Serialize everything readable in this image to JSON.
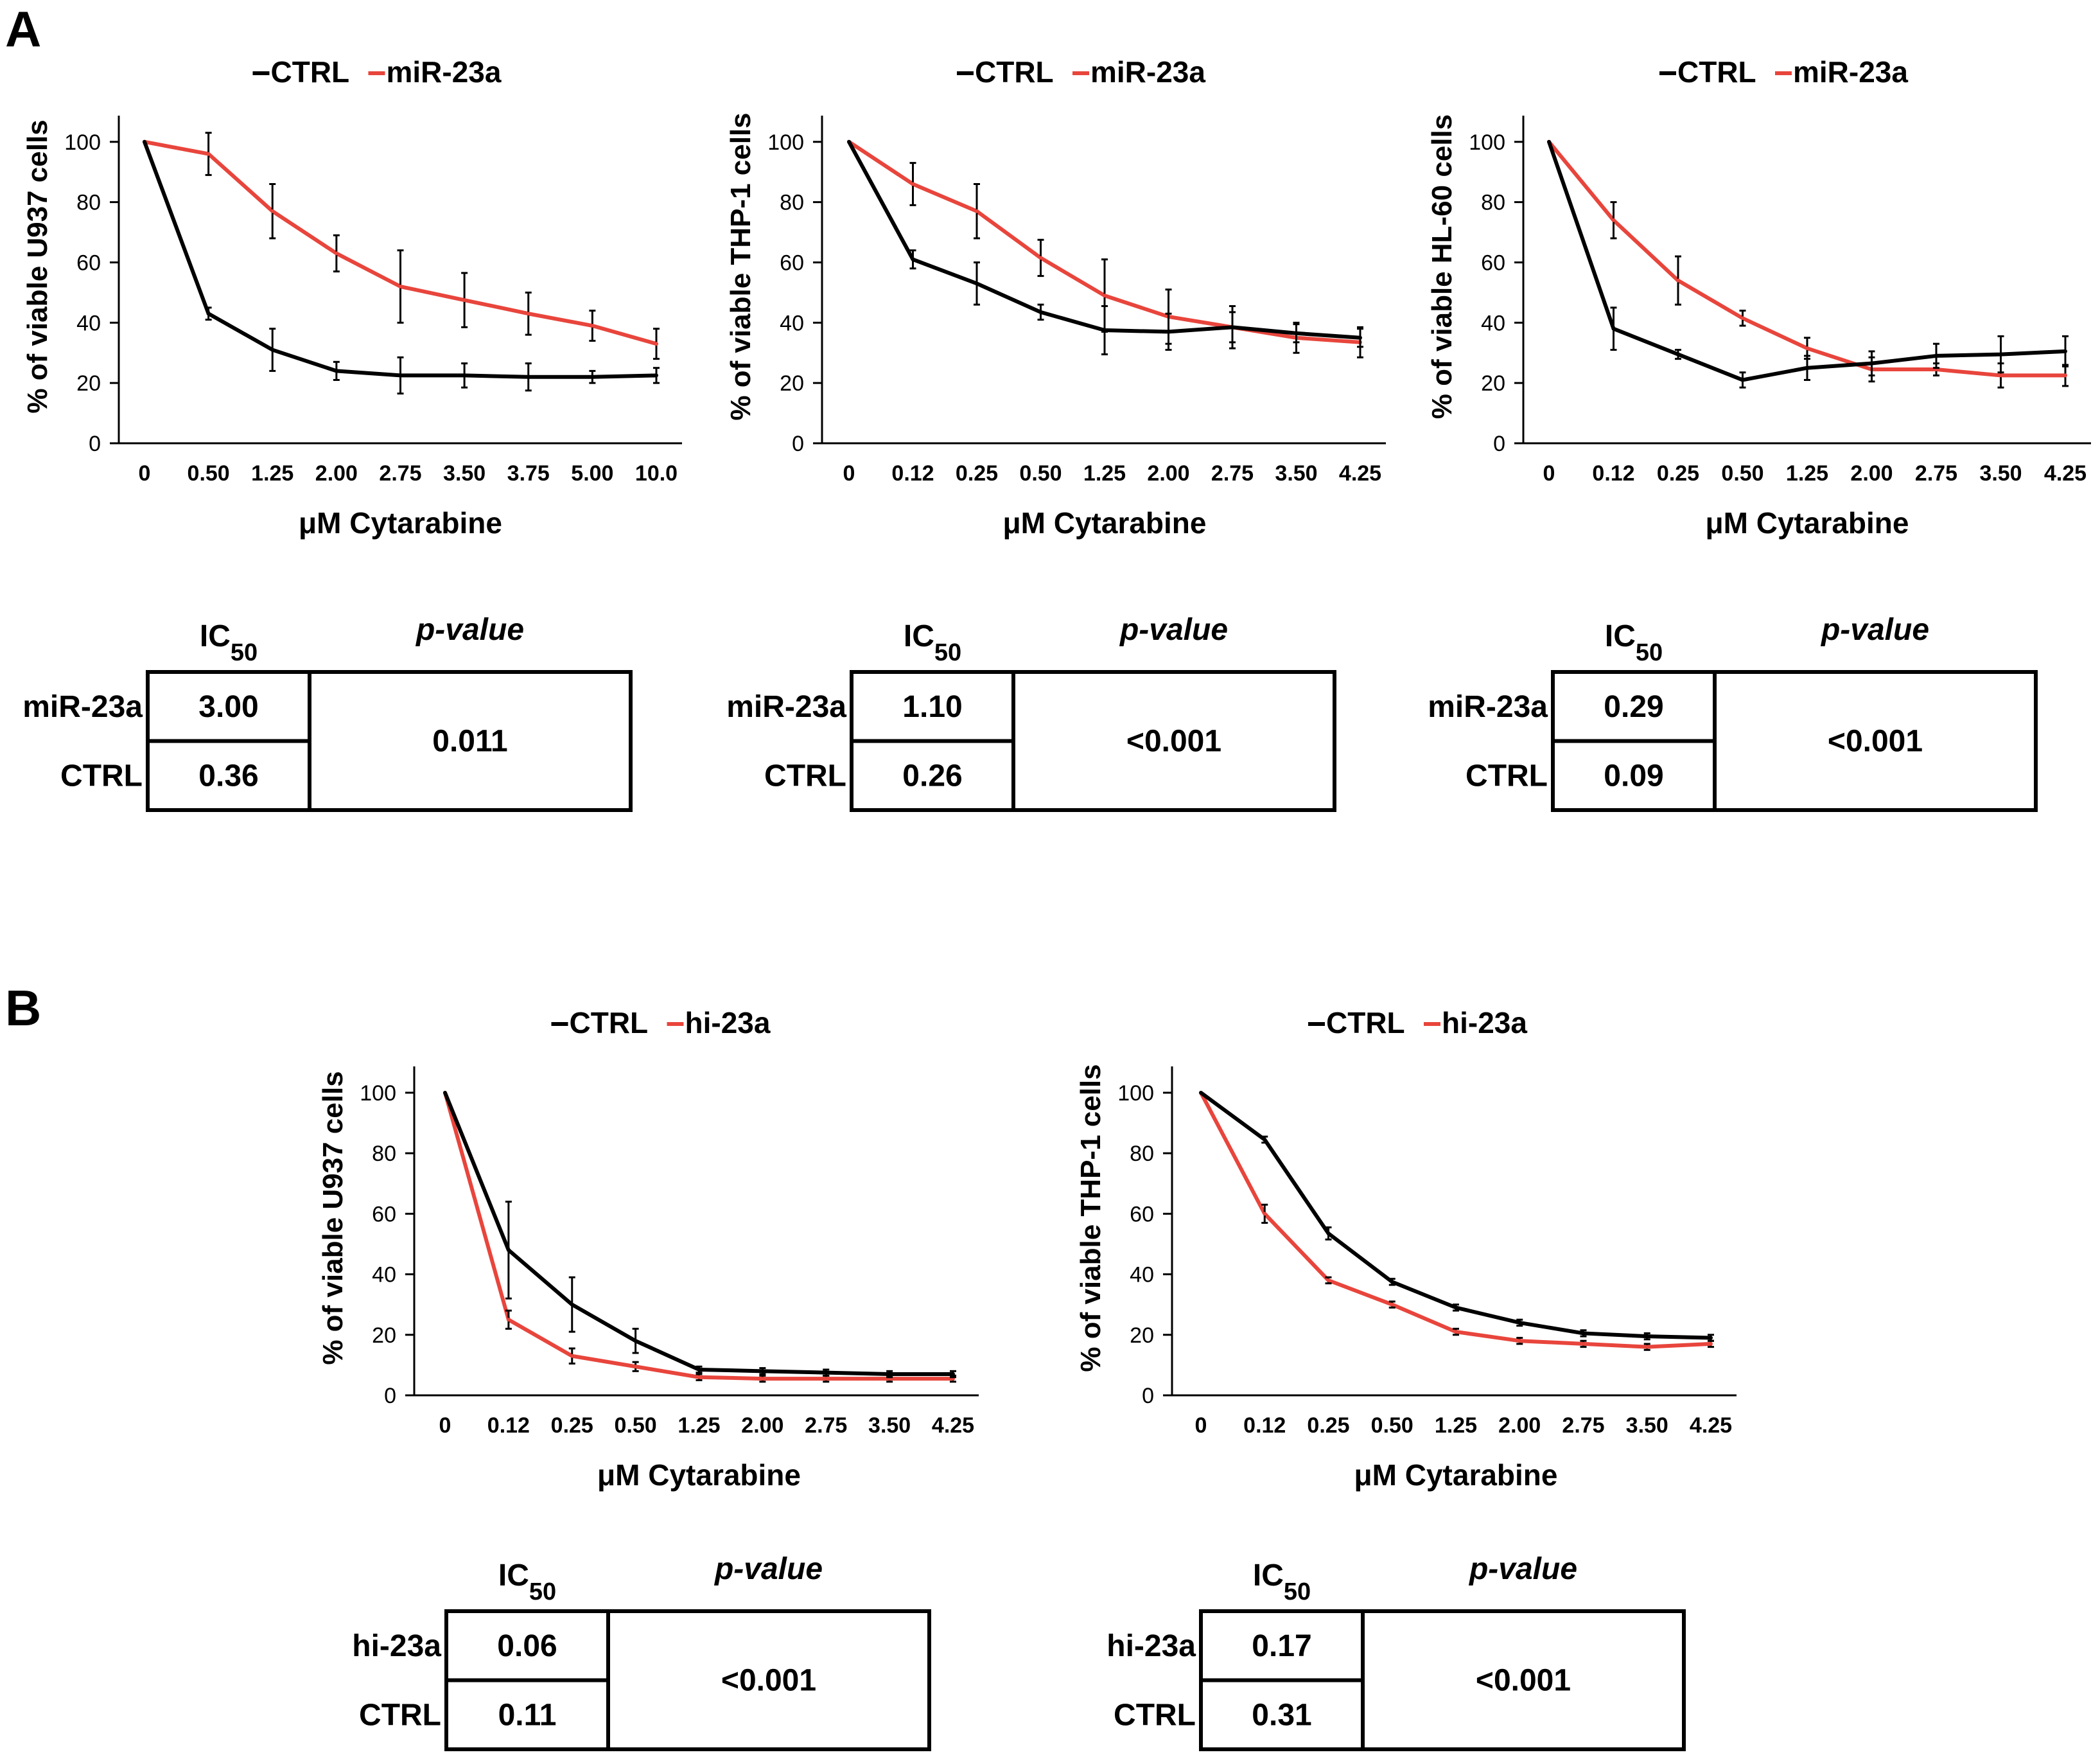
{
  "colors": {
    "ctrl": "#000000",
    "treated": "#e8453c",
    "axis": "#000000"
  },
  "panels": [
    {
      "label": "A"
    },
    {
      "label": "B"
    }
  ],
  "chart_data": [
    {
      "type": "line",
      "panel": "A",
      "legend": [
        "CTRL",
        "miR-23a"
      ],
      "ylabel": "% of viable U937 cells",
      "xlabel": "μM Cytarabine",
      "categories": [
        "0",
        "0.50",
        "1.25",
        "2.00",
        "2.75",
        "3.50",
        "3.75",
        "5.00",
        "10.0"
      ],
      "ylim": [
        0,
        100
      ],
      "yticks": [
        0,
        20,
        40,
        60,
        80,
        100
      ],
      "series": [
        {
          "name": "CTRL",
          "values": [
            100,
            43,
            31,
            24,
            22.5,
            22.5,
            22,
            22,
            22.5
          ],
          "errors": [
            0,
            2,
            7,
            3,
            6,
            4,
            4.5,
            2,
            2.5
          ]
        },
        {
          "name": "miR-23a",
          "values": [
            100,
            96,
            77,
            63,
            52,
            47.5,
            43,
            39,
            33
          ],
          "errors": [
            0,
            7,
            9,
            6,
            12,
            9,
            7,
            5,
            5
          ]
        }
      ],
      "table": {
        "col1": "IC",
        "col1_sub": "50",
        "col2": "p-value",
        "row1": "miR-23a",
        "row2": "CTRL",
        "v1": "3.00",
        "v2": "0.36",
        "p": "0.011"
      }
    },
    {
      "type": "line",
      "panel": "A",
      "legend": [
        "CTRL",
        "miR-23a"
      ],
      "ylabel": "% of viable THP-1 cells",
      "xlabel": "μM Cytarabine",
      "categories": [
        "0",
        "0.12",
        "0.25",
        "0.50",
        "1.25",
        "2.00",
        "2.75",
        "3.50",
        "4.25"
      ],
      "ylim": [
        0,
        100
      ],
      "yticks": [
        0,
        20,
        40,
        60,
        80,
        100
      ],
      "series": [
        {
          "name": "CTRL",
          "values": [
            100,
            61,
            53,
            43.5,
            37.5,
            37,
            38.5,
            36.5,
            35
          ],
          "errors": [
            0,
            3,
            7,
            2.5,
            8,
            6,
            5,
            3,
            3
          ]
        },
        {
          "name": "miR-23a",
          "values": [
            100,
            86,
            77,
            61.5,
            49,
            42,
            38.5,
            35,
            33.5
          ],
          "errors": [
            0,
            7,
            9,
            6,
            12,
            9,
            7,
            5,
            5
          ]
        }
      ],
      "table": {
        "col1": "IC",
        "col1_sub": "50",
        "col2": "p-value",
        "row1": "miR-23a",
        "row2": "CTRL",
        "v1": "1.10",
        "v2": "0.26",
        "p": "<0.001"
      }
    },
    {
      "type": "line",
      "panel": "A",
      "legend": [
        "CTRL",
        "miR-23a"
      ],
      "ylabel": "% of viable HL-60 cells",
      "xlabel": "μM Cytarabine",
      "categories": [
        "0",
        "0.12",
        "0.25",
        "0.50",
        "1.25",
        "2.00",
        "2.75",
        "3.50",
        "4.25"
      ],
      "ylim": [
        0,
        100
      ],
      "yticks": [
        0,
        20,
        40,
        60,
        80,
        100
      ],
      "series": [
        {
          "name": "CTRL",
          "values": [
            100,
            38,
            29.5,
            21,
            25,
            26.5,
            29,
            29.5,
            30.5
          ],
          "errors": [
            0,
            7,
            1.5,
            2.5,
            4,
            4,
            4,
            6,
            5
          ]
        },
        {
          "name": "miR-23a",
          "values": [
            100,
            74,
            54,
            41.5,
            31.5,
            24.5,
            24.5,
            22.5,
            22.5
          ],
          "errors": [
            0,
            6,
            8,
            2.5,
            3.5,
            4,
            2,
            4,
            3.5
          ]
        }
      ],
      "table": {
        "col1": "IC",
        "col1_sub": "50",
        "col2": "p-value",
        "row1": "miR-23a",
        "row2": "CTRL",
        "v1": "0.29",
        "v2": "0.09",
        "p": "<0.001"
      }
    },
    {
      "type": "line",
      "panel": "B",
      "legend": [
        "CTRL",
        "hi-23a"
      ],
      "ylabel": "% of viable U937 cells",
      "xlabel": "μM Cytarabine",
      "categories": [
        "0",
        "0.12",
        "0.25",
        "0.50",
        "1.25",
        "2.00",
        "2.75",
        "3.50",
        "4.25"
      ],
      "ylim": [
        0,
        100
      ],
      "yticks": [
        0,
        20,
        40,
        60,
        80,
        100
      ],
      "series": [
        {
          "name": "CTRL",
          "values": [
            100,
            48,
            30,
            18,
            8.5,
            8,
            7.5,
            7,
            7
          ],
          "errors": [
            0,
            16,
            9,
            4,
            1,
            1,
            1,
            1,
            1
          ]
        },
        {
          "name": "hi-23a",
          "values": [
            100,
            25,
            13,
            9.5,
            6,
            5.5,
            5.5,
            5.5,
            5.5
          ],
          "errors": [
            0,
            3,
            2.5,
            1.5,
            1,
            1,
            1,
            1,
            1
          ]
        }
      ],
      "table": {
        "col1": "IC",
        "col1_sub": "50",
        "col2": "p-value",
        "row1": "hi-23a",
        "row2": "CTRL",
        "v1": "0.06",
        "v2": "0.11",
        "p": "<0.001"
      }
    },
    {
      "type": "line",
      "panel": "B",
      "legend": [
        "CTRL",
        "hi-23a"
      ],
      "ylabel": "% of viable THP-1 cells",
      "xlabel": "μM Cytarabine",
      "categories": [
        "0",
        "0.12",
        "0.25",
        "0.50",
        "1.25",
        "2.00",
        "2.75",
        "3.50",
        "4.25"
      ],
      "ylim": [
        0,
        100
      ],
      "yticks": [
        0,
        20,
        40,
        60,
        80,
        100
      ],
      "series": [
        {
          "name": "CTRL",
          "values": [
            100,
            84.5,
            53.5,
            37.5,
            29,
            24,
            20.5,
            19.5,
            19
          ],
          "errors": [
            0,
            1,
            2,
            1,
            1,
            1,
            1,
            1,
            1
          ]
        },
        {
          "name": "hi-23a",
          "values": [
            100,
            60,
            38,
            30,
            21,
            18,
            17,
            16,
            17
          ],
          "errors": [
            0,
            3,
            1,
            1,
            1,
            1,
            1,
            1,
            1
          ]
        }
      ],
      "table": {
        "col1": "IC",
        "col1_sub": "50",
        "col2": "p-value",
        "row1": "hi-23a",
        "row2": "CTRL",
        "v1": "0.17",
        "v2": "0.31",
        "p": "<0.001"
      }
    }
  ]
}
